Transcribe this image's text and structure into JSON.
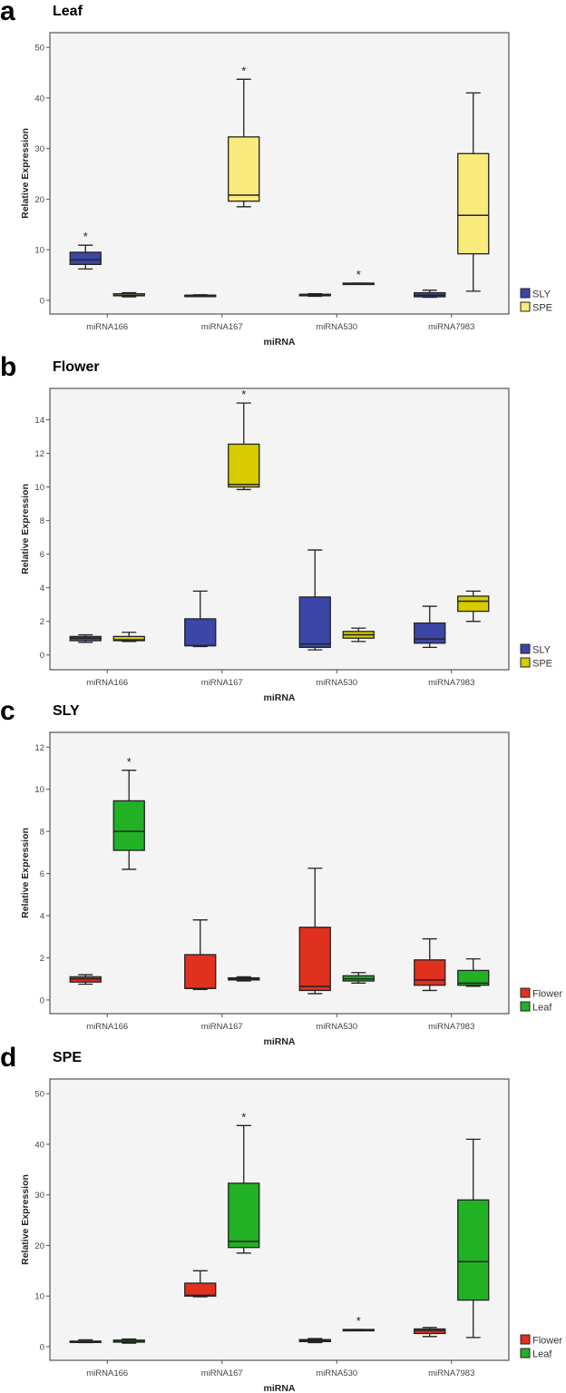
{
  "chart_data": [
    {
      "type": "boxplot",
      "panel_label": "a",
      "title": "Leaf",
      "xlabel": "miRNA",
      "ylabel": "Relative Expression",
      "ylim": [
        -2.7,
        52.9
      ],
      "yticks": [
        0,
        10,
        20,
        30,
        40,
        50
      ],
      "categories": [
        "miRNA166",
        "miRNA167",
        "miRNA530",
        "miRNA7983"
      ],
      "legend_position": "bottom-right",
      "series": [
        {
          "name": "SLY",
          "color": "#3b46a6",
          "boxes": [
            [
              6.2,
              7.1,
              8.0,
              9.5,
              10.9
            ],
            [
              0.9,
              1.0,
              1.0,
              1.0,
              1.1
            ],
            [
              0.8,
              0.9,
              1.0,
              1.2,
              1.3
            ],
            [
              0.6,
              0.7,
              1.0,
              1.5,
              2.0
            ]
          ],
          "significant": [
            true,
            false,
            false,
            false
          ]
        },
        {
          "name": "SPE",
          "color": "#f9ea7c",
          "boxes": [
            [
              0.7,
              0.9,
              1.0,
              1.3,
              1.5
            ],
            [
              18.5,
              19.6,
              20.8,
              32.3,
              43.7
            ],
            [
              3.2,
              3.3,
              3.3,
              3.4,
              3.4
            ],
            [
              1.8,
              9.2,
              16.8,
              29.0,
              41.0
            ]
          ],
          "significant": [
            false,
            true,
            true,
            false
          ]
        }
      ],
      "significance_mark": "*"
    },
    {
      "type": "boxplot",
      "panel_label": "b",
      "title": "Flower",
      "xlabel": "miRNA",
      "ylabel": "Relative Expression",
      "ylim": [
        -0.88,
        15.87
      ],
      "yticks": [
        0,
        2,
        4,
        6,
        8,
        10,
        12,
        14
      ],
      "categories": [
        "miRNA166",
        "miRNA167",
        "miRNA530",
        "miRNA7983"
      ],
      "legend_position": "bottom-right",
      "series": [
        {
          "name": "SLY",
          "color": "#3b46a6",
          "boxes": [
            [
              0.75,
              0.85,
              1.0,
              1.1,
              1.2
            ],
            [
              0.5,
              0.55,
              0.55,
              2.15,
              3.8
            ],
            [
              0.3,
              0.45,
              0.65,
              3.45,
              6.25
            ],
            [
              0.45,
              0.7,
              0.95,
              1.9,
              2.9
            ]
          ],
          "significant": [
            false,
            false,
            false,
            false
          ]
        },
        {
          "name": "SPE",
          "color": "#d6cc00",
          "boxes": [
            [
              0.8,
              0.85,
              0.9,
              1.1,
              1.35
            ],
            [
              9.85,
              10.0,
              10.15,
              12.55,
              15.0
            ],
            [
              0.8,
              1.0,
              1.2,
              1.4,
              1.6
            ],
            [
              2.0,
              2.6,
              3.2,
              3.5,
              3.8
            ]
          ],
          "significant": [
            false,
            true,
            false,
            false
          ]
        }
      ],
      "significance_mark": "*"
    },
    {
      "type": "boxplot",
      "panel_label": "c",
      "title": "SLY",
      "xlabel": "miRNA",
      "ylabel": "Relative Expression",
      "ylim": [
        -0.65,
        12.7
      ],
      "yticks": [
        0,
        2,
        4,
        6,
        8,
        10,
        12
      ],
      "categories": [
        "miRNA166",
        "miRNA167",
        "miRNA530",
        "miRNA7983"
      ],
      "legend_position": "bottom-right",
      "series": [
        {
          "name": "Flower",
          "color": "#e0301e",
          "boxes": [
            [
              0.75,
              0.85,
              1.0,
              1.1,
              1.2
            ],
            [
              0.5,
              0.55,
              0.55,
              2.15,
              3.8
            ],
            [
              0.3,
              0.45,
              0.65,
              3.45,
              6.25
            ],
            [
              0.45,
              0.7,
              0.95,
              1.9,
              2.9
            ]
          ],
          "significant": [
            false,
            false,
            false,
            false
          ]
        },
        {
          "name": "Leaf",
          "color": "#22b024",
          "boxes": [
            [
              6.2,
              7.1,
              8.0,
              9.45,
              10.9
            ],
            [
              0.9,
              0.95,
              1.0,
              1.05,
              1.1
            ],
            [
              0.8,
              0.9,
              1.0,
              1.15,
              1.3
            ],
            [
              0.65,
              0.7,
              0.8,
              1.4,
              1.95
            ]
          ],
          "significant": [
            true,
            false,
            false,
            false
          ]
        }
      ],
      "significance_mark": "*"
    },
    {
      "type": "boxplot",
      "panel_label": "d",
      "title": "SPE",
      "xlabel": "miRNA",
      "ylabel": "Relative Expression",
      "ylim": [
        -2.7,
        52.9
      ],
      "yticks": [
        0,
        10,
        20,
        30,
        40,
        50
      ],
      "categories": [
        "miRNA166",
        "miRNA167",
        "miRNA530",
        "miRNA7983"
      ],
      "legend_position": "bottom-right",
      "series": [
        {
          "name": "Flower",
          "color": "#e0301e",
          "boxes": [
            [
              0.8,
              0.85,
              0.9,
              1.1,
              1.35
            ],
            [
              9.85,
              10.0,
              10.15,
              12.55,
              15.0
            ],
            [
              0.8,
              1.0,
              1.2,
              1.4,
              1.6
            ],
            [
              2.0,
              2.6,
              3.2,
              3.5,
              3.8
            ]
          ],
          "significant": [
            false,
            false,
            false,
            false
          ]
        },
        {
          "name": "Leaf",
          "color": "#22b024",
          "boxes": [
            [
              0.7,
              0.9,
              1.0,
              1.3,
              1.5
            ],
            [
              18.5,
              19.6,
              20.8,
              32.3,
              43.7
            ],
            [
              3.2,
              3.3,
              3.3,
              3.4,
              3.4
            ],
            [
              1.8,
              9.2,
              16.8,
              29.0,
              41.0
            ]
          ],
          "significant": [
            false,
            true,
            true,
            false
          ]
        }
      ],
      "significance_mark": "*"
    }
  ]
}
